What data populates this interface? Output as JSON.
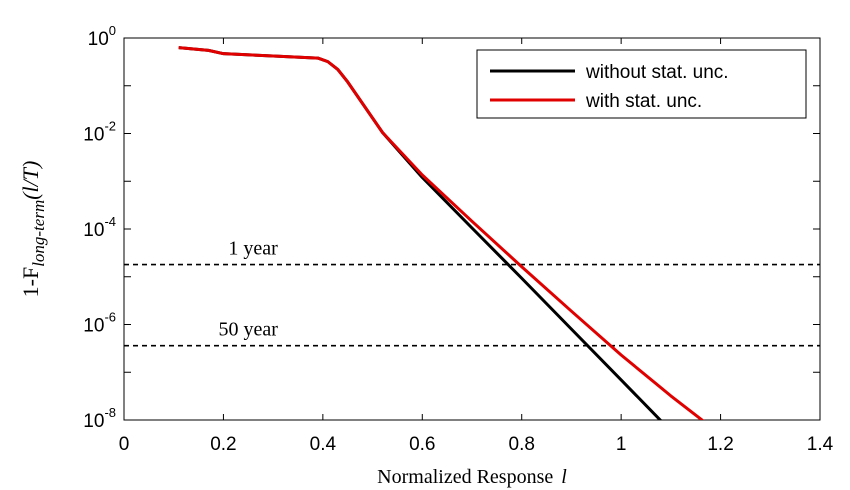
{
  "chart_data": {
    "type": "line",
    "xlabel": "Normalized Response",
    "xlabel_var": "l",
    "ylabel": {
      "prefix": "1-F",
      "subscript": "long-term",
      "suffix": "(l/T)"
    },
    "xlim": [
      0,
      1.4
    ],
    "ylim_log10": [
      -8,
      0
    ],
    "yscale": "log",
    "grid": false,
    "legend_position": "top-right",
    "x_ticks": [
      {
        "value": 0,
        "label": "0"
      },
      {
        "value": 0.2,
        "label": "0.2"
      },
      {
        "value": 0.4,
        "label": "0.4"
      },
      {
        "value": 0.6,
        "label": "0.6"
      },
      {
        "value": 0.8,
        "label": "0.8"
      },
      {
        "value": 1.0,
        "label": "1"
      },
      {
        "value": 1.2,
        "label": "1.2"
      },
      {
        "value": 1.4,
        "label": "1.4"
      }
    ],
    "y_ticks": [
      {
        "exp": 0,
        "base": "10",
        "sup": "0"
      },
      {
        "exp": -2,
        "base": "10",
        "sup": "-2"
      },
      {
        "exp": -4,
        "base": "10",
        "sup": "-4"
      },
      {
        "exp": -6,
        "base": "10",
        "sup": "-6"
      },
      {
        "exp": -8,
        "base": "10",
        "sup": "-8"
      }
    ],
    "series": [
      {
        "name": "without stat. unc.",
        "color": "#000000",
        "points": [
          [
            0.11,
            0.63
          ],
          [
            0.17,
            0.55
          ],
          [
            0.2,
            0.47
          ],
          [
            0.3,
            0.42
          ],
          [
            0.39,
            0.38
          ],
          [
            0.41,
            0.32
          ],
          [
            0.43,
            0.22
          ],
          [
            0.45,
            0.12
          ],
          [
            0.52,
            0.0105
          ],
          [
            0.6,
            0.0012
          ],
          [
            0.7,
            0.000105
          ],
          [
            0.8,
            9.3e-06
          ],
          [
            0.9,
            8e-07
          ],
          [
            1.0,
            6.9e-08
          ],
          [
            1.1,
            5.9e-09
          ],
          [
            1.18,
            8.5e-10
          ]
        ]
      },
      {
        "name": "with stat. unc.",
        "color": "#e00000",
        "points": [
          [
            0.11,
            0.63
          ],
          [
            0.17,
            0.55
          ],
          [
            0.2,
            0.47
          ],
          [
            0.3,
            0.42
          ],
          [
            0.39,
            0.38
          ],
          [
            0.41,
            0.32
          ],
          [
            0.43,
            0.22
          ],
          [
            0.45,
            0.12
          ],
          [
            0.52,
            0.0105
          ],
          [
            0.6,
            0.00135
          ],
          [
            0.7,
            0.000145
          ],
          [
            0.8,
            1.62e-05
          ],
          [
            0.9,
            1.9e-06
          ],
          [
            1.0,
            2.3e-07
          ],
          [
            1.1,
            3.2e-08
          ],
          [
            1.2,
            5e-09
          ],
          [
            1.26,
            1.5e-09
          ]
        ]
      }
    ],
    "reference_lines": [
      {
        "label": "1 year",
        "y": 1.8e-05,
        "label_x": 0.21
      },
      {
        "label": "50 year",
        "y": 3.6e-07,
        "label_x": 0.19
      }
    ]
  }
}
